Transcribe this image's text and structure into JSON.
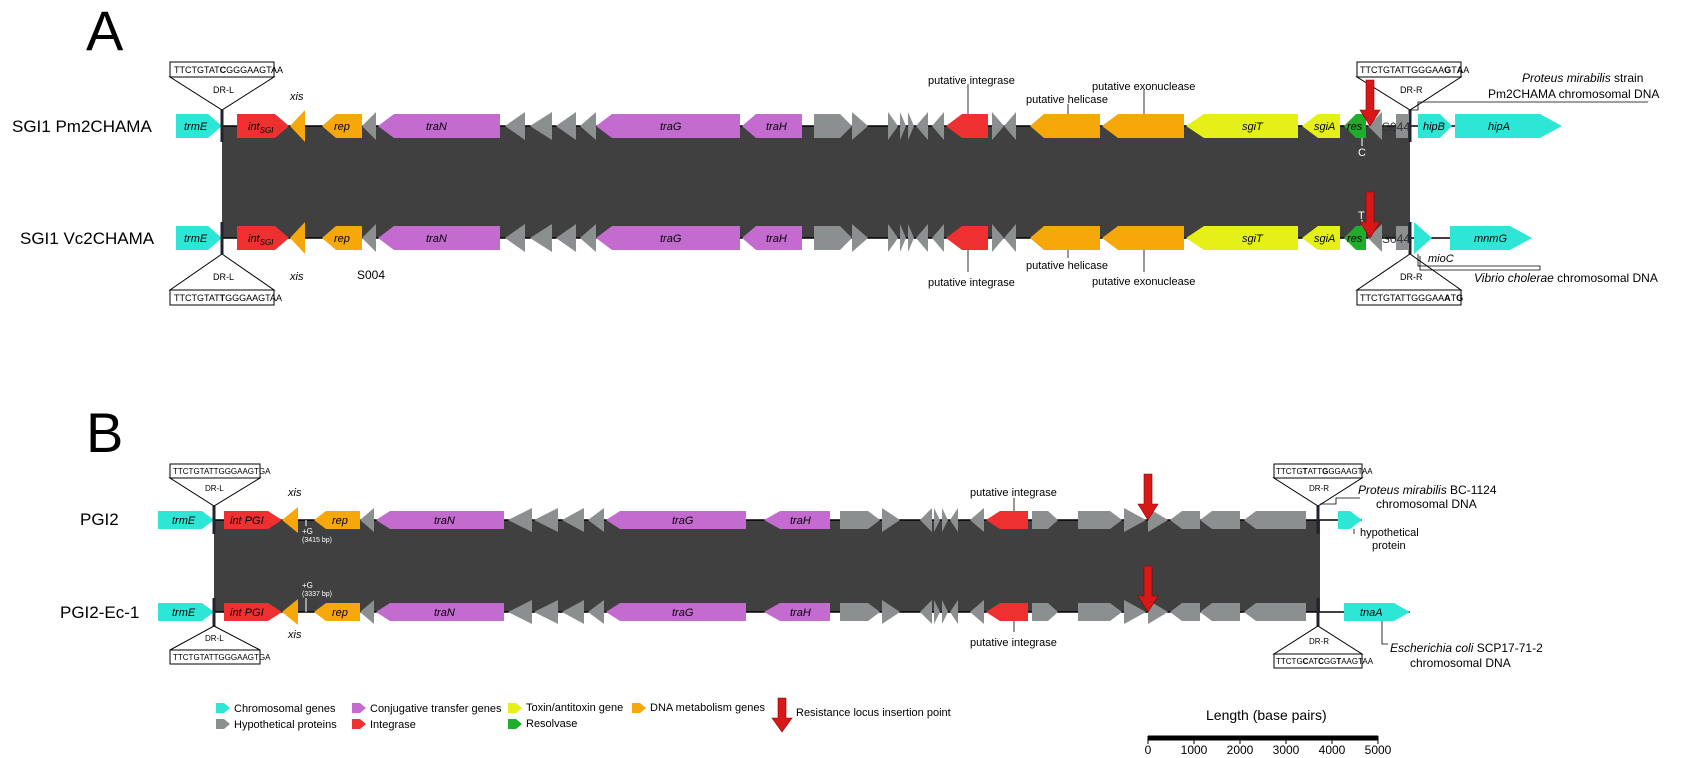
{
  "panels": {
    "a": "A",
    "b": "B"
  },
  "colors": {
    "chromosomal": "#2ee6d6",
    "hypothetical": "#8c8f8f",
    "conjugative": "#c46bd0",
    "toxin": "#e5f018",
    "dna_metabolism": "#f6a80b",
    "integrase": "#ee3030",
    "resolvase": "#1fae2b",
    "shading": "#404040",
    "insertion": "#d81818"
  },
  "sgi1": {
    "track1": "SGI1 Pm2CHAMA",
    "track2": "SGI1 Vc2CHAMA",
    "genes": {
      "trmE": "trmE",
      "int": "int",
      "int_sub": "SGI",
      "rep": "rep",
      "traN": "traN",
      "traG": "traG",
      "traH": "traH",
      "sgiT": "sgiT",
      "sgiA": "sgiA",
      "res": "res",
      "hipB": "hipB",
      "hipA": "hipA",
      "mnmG": "mnmG"
    },
    "xis": "xis",
    "putative_integrase": "putative integrase",
    "putative_helicase": "putative helicase",
    "putative_exonuclease": "putative exonuclease",
    "s004": "S004",
    "s044": "S044",
    "snp_c": "C",
    "snp_t": "T",
    "dr_l": "DR-L",
    "dr_r": "DR-R",
    "dr_l_seq_top": {
      "a": "TTCTGTAT",
      "b": "C",
      "c": "GGGAAGTAA"
    },
    "dr_l_seq_bottom": {
      "a": "TTCTGTAT",
      "b": "T",
      "c": "GGGAAGTAA"
    },
    "dr_r_seq_top": {
      "a": "TTCTGTATTGGGAA",
      "b": "G",
      "c": "T",
      "d": "A",
      "e": "A"
    },
    "dr_r_seq_bottom": {
      "a": "TTCTGTATTGGGAA",
      "b": "A",
      "c": "T",
      "d": "G"
    },
    "pm_note_1": "Proteus mirabilis",
    "pm_note_2": " strain",
    "pm_note_3": "Pm2CHAMA chromosomal DNA",
    "mioC": "mioC",
    "vc_note_1": "Vibrio cholerae",
    "vc_note_2": " chromosomal DNA"
  },
  "pgi2": {
    "track1": "PGI2",
    "track2": "PGI2-Ec-1",
    "genes": {
      "trmE": "trmE",
      "int": "int PGI",
      "rep": "rep",
      "traN": "traN",
      "traG": "traG",
      "traH": "traH",
      "tnaA": "tnaA"
    },
    "xis": "xis",
    "putative_integrase": "putative integrase",
    "plus_g": "+G",
    "bp_top": "(3415 bp)",
    "bp_bottom": "(3337 bp)",
    "dr_l": "DR-L",
    "dr_r": "DR-R",
    "dr_l_seq_top": "TTCTGTATTGGGAAGTGA",
    "dr_l_seq_bottom": "TTCTGTATTGGGAAGTGA",
    "dr_r_seq_top": {
      "a": "TTCTG",
      "b": "T",
      "c": "ATT",
      "d": "G",
      "e": "G",
      "f": "GAAGTAA"
    },
    "dr_r_seq_bottom": {
      "a": "TTCTG",
      "b": "C",
      "c": "AT",
      "d": "C",
      "e": "GG",
      "f": "T",
      "g": "AAGTAA"
    },
    "pm_note_1": "Proteus mirabilis",
    "pm_note_2": " BC-1124",
    "pm_note_3": "chromosomal DNA",
    "hyp_1": "hypothetical",
    "hyp_2": "protein",
    "ec_note_1": "Escherichia coli",
    "ec_note_2": " SCP17-71-2",
    "ec_note_3": "chromosomal DNA"
  },
  "legend": {
    "chromosomal": "Chromosomal genes",
    "hypothetical": "Hypothetical proteins",
    "conjugative": "Conjugative transfer genes",
    "integrase": "Integrase",
    "toxin": "Toxin/antitoxin gene",
    "resolvase": "Resolvase",
    "dna_metabolism": "DNA metabolism genes",
    "resistance": "Resistance locus insertion point"
  },
  "scale": {
    "title": "Length (base pairs)",
    "ticks": [
      "0",
      "1000",
      "2000",
      "3000",
      "4000",
      "5000"
    ]
  }
}
